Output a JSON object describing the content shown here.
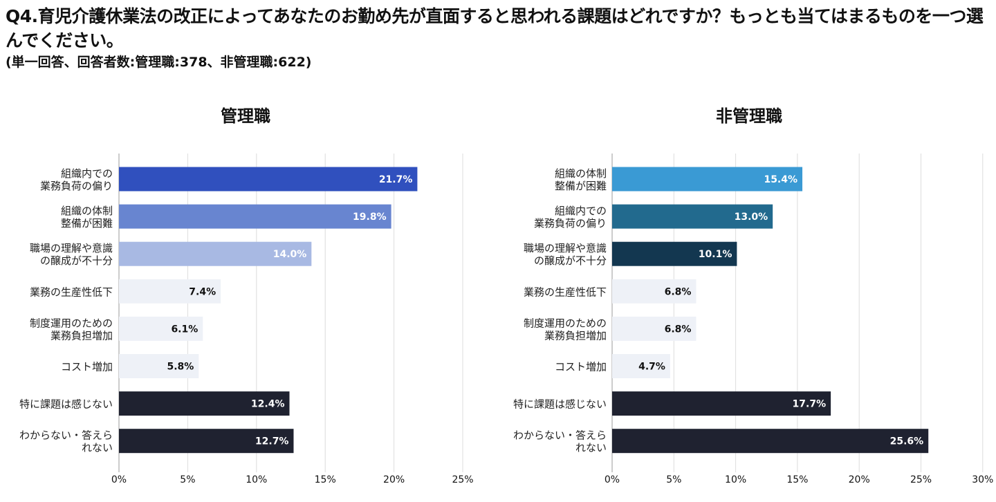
{
  "title": "Q4.育児介護休業法の改正によってあなたのお勤め先が直面すると思われる課題はどれですか？もっとも当てはまるものを一つ選んでください。",
  "subtitle": "(単一回答、回答者数:管理職:378、非管理職:622)",
  "chart_data": [
    {
      "type": "bar",
      "orientation": "horizontal",
      "title": "管理職",
      "categories": [
        [
          "組織内での",
          "業務負荷の偏り"
        ],
        [
          "組織の体制",
          "整備が困難"
        ],
        [
          "職場の理解や意識",
          "の醸成が不十分"
        ],
        [
          "業務の生産性低下"
        ],
        [
          "制度運用のための",
          "業務負担増加"
        ],
        [
          "コスト増加"
        ],
        [
          "特に課題は感じない"
        ],
        [
          "わからない・答えら",
          "れない"
        ]
      ],
      "values": [
        21.7,
        19.8,
        14.0,
        7.4,
        6.1,
        5.8,
        12.4,
        12.7
      ],
      "value_labels": [
        "21.7%",
        "19.8%",
        "14.0%",
        "7.4%",
        "6.1%",
        "5.8%",
        "12.4%",
        "12.7%"
      ],
      "colors": [
        "#3050be",
        "#6885d0",
        "#a8b9e3",
        "#eef1f7",
        "#eef1f7",
        "#eef1f7",
        "#1f2230",
        "#1f2230"
      ],
      "label_colors": [
        "#ffffff",
        "#ffffff",
        "#ffffff",
        "#111111",
        "#111111",
        "#111111",
        "#ffffff",
        "#ffffff"
      ],
      "xlim": [
        0,
        25
      ],
      "xticks": [
        "0%",
        "5%",
        "10%",
        "15%",
        "20%",
        "25%"
      ],
      "grid": true
    },
    {
      "type": "bar",
      "orientation": "horizontal",
      "title": "非管理職",
      "categories": [
        [
          "組織の体制",
          "整備が困難"
        ],
        [
          "組織内での",
          "業務負荷の偏り"
        ],
        [
          "職場の理解や意識",
          "の醸成が不十分"
        ],
        [
          "業務の生産性低下"
        ],
        [
          "制度運用のための",
          "業務負担増加"
        ],
        [
          "コスト増加"
        ],
        [
          "特に課題は感じない"
        ],
        [
          "わからない・答えら",
          "れない"
        ]
      ],
      "values": [
        15.4,
        13.0,
        10.1,
        6.8,
        6.8,
        4.7,
        17.7,
        25.6
      ],
      "value_labels": [
        "15.4%",
        "13.0%",
        "10.1%",
        "6.8%",
        "6.8%",
        "4.7%",
        "17.7%",
        "25.6%"
      ],
      "colors": [
        "#3a9ad4",
        "#226a8e",
        "#133750",
        "#eef1f7",
        "#eef1f7",
        "#eef1f7",
        "#1f2230",
        "#1f2230"
      ],
      "label_colors": [
        "#ffffff",
        "#ffffff",
        "#ffffff",
        "#111111",
        "#111111",
        "#111111",
        "#ffffff",
        "#ffffff"
      ],
      "xlim": [
        0,
        30
      ],
      "xticks": [
        "0%",
        "5%",
        "10%",
        "15%",
        "20%",
        "25%",
        "30%"
      ],
      "grid": true
    }
  ]
}
